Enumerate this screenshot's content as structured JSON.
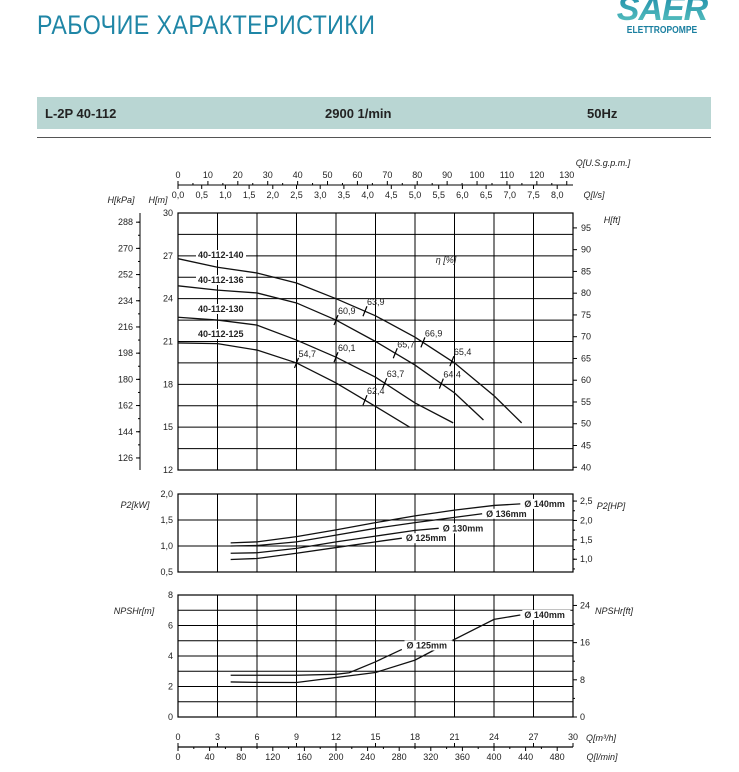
{
  "header": {
    "title": "РАБОЧИЕ ХАРАКТЕРИСТИКИ",
    "logo_text": "SAER",
    "logo_sub": "ELETTROPOMPE",
    "model": "L-2P 40-112",
    "speed": "2900 1/min",
    "frequency": "50Hz",
    "title_color": "#1f86a6",
    "band_color": "#b9d6d3"
  },
  "chart_data": [
    {
      "type": "line",
      "id": "head",
      "xlabel": "Q[m³/h]",
      "xlim": [
        0,
        30
      ],
      "ylabel": "H[m]",
      "ylim": [
        12,
        30
      ],
      "yticks": [
        12,
        15,
        18,
        21,
        24,
        27,
        30
      ],
      "ylabel_left2": "H[kPa]",
      "yticks_left2": [
        126,
        144,
        162,
        180,
        198,
        216,
        234,
        252,
        270,
        288
      ],
      "ylabel_right": "H[ft]",
      "yticks_right": [
        40,
        45,
        50,
        55,
        60,
        65,
        70,
        75,
        80,
        85,
        90,
        95
      ],
      "top_axes": [
        {
          "label": "Q[U.S.g.p.m.]",
          "ticks": [
            "0",
            "10",
            "20",
            "30",
            "40",
            "50",
            "60",
            "70",
            "80",
            "90",
            "100",
            "110",
            "120",
            "130"
          ]
        },
        {
          "label": "Q[l/s]",
          "ticks": [
            "0,0",
            "0,5",
            "1,0",
            "1,5",
            "2,0",
            "2,5",
            "3,0",
            "3,5",
            "4,0",
            "4,5",
            "5,0",
            "5,5",
            "6,0",
            "6,5",
            "7,0",
            "7,5",
            "8,0"
          ]
        }
      ],
      "efficiency_label": "η [%]",
      "grid": true,
      "series": [
        {
          "name": "40-112-140",
          "x": [
            0,
            3,
            6,
            9,
            12,
            15,
            18,
            21,
            24,
            26.1
          ],
          "y": [
            26.8,
            26.2,
            25.8,
            25.1,
            24.0,
            22.8,
            21.3,
            19.5,
            17.2,
            15.3
          ]
        },
        {
          "name": "40-112-136",
          "x": [
            0,
            3,
            6,
            9,
            12,
            15,
            18,
            21,
            23.2
          ],
          "y": [
            24.9,
            24.6,
            24.4,
            23.7,
            22.5,
            21.0,
            19.35,
            17.4,
            15.5
          ]
        },
        {
          "name": "40-112-130",
          "x": [
            0,
            3,
            6,
            9,
            12,
            15,
            18,
            20.9
          ],
          "y": [
            22.7,
            22.5,
            22.15,
            21.1,
            19.9,
            18.5,
            16.7,
            15.3
          ]
        },
        {
          "name": "40-112-125",
          "x": [
            0,
            3,
            6,
            9,
            12,
            15,
            17.6
          ],
          "y": [
            20.9,
            20.85,
            20.4,
            19.5,
            18.1,
            16.45,
            15.0
          ]
        }
      ],
      "efficiency_points": [
        {
          "series": 3,
          "x": 9,
          "label": "54,7"
        },
        {
          "series": 3,
          "x": 14.2,
          "label": "62,4"
        },
        {
          "series": 2,
          "x": 12,
          "label": "60,1"
        },
        {
          "series": 2,
          "x": 15.7,
          "label": "63,7"
        },
        {
          "series": 1,
          "x": 12,
          "label": "60,9"
        },
        {
          "series": 1,
          "x": 16.5,
          "label": "65,7"
        },
        {
          "series": 1,
          "x": 20,
          "label": "64,4"
        },
        {
          "series": 0,
          "x": 14.2,
          "label": "63,9"
        },
        {
          "series": 0,
          "x": 18.6,
          "label": "66,9"
        },
        {
          "series": 0,
          "x": 20.8,
          "label": "65,4"
        }
      ]
    },
    {
      "type": "line",
      "id": "power",
      "ylabel": "P2[kW]",
      "ylim": [
        0.5,
        2.0
      ],
      "yticks": [
        "0,5",
        "1,0",
        "1,5",
        "2,0"
      ],
      "ylabel_right": "P2[HP]",
      "yticks_right": [
        "1,0",
        "1,5",
        "2,0",
        "2,5"
      ],
      "grid": true,
      "series": [
        {
          "name": "Ø 140mm",
          "x": [
            4,
            6,
            9,
            12,
            15,
            18,
            21,
            24,
            26
          ],
          "y": [
            1.06,
            1.08,
            1.18,
            1.31,
            1.45,
            1.58,
            1.69,
            1.78,
            1.81
          ]
        },
        {
          "name": "Ø 136mm",
          "x": [
            4,
            6,
            9,
            12,
            15,
            18,
            21,
            23.1
          ],
          "y": [
            1.0,
            1.01,
            1.08,
            1.21,
            1.34,
            1.45,
            1.55,
            1.62
          ]
        },
        {
          "name": "Ø 130mm",
          "x": [
            4,
            6,
            9,
            12,
            15,
            18,
            19.8
          ],
          "y": [
            0.86,
            0.87,
            0.955,
            1.08,
            1.19,
            1.3,
            1.34
          ]
        },
        {
          "name": "Ø 125mm",
          "x": [
            4,
            6,
            9,
            12,
            15,
            17
          ],
          "y": [
            0.74,
            0.76,
            0.86,
            0.97,
            1.08,
            1.15
          ]
        }
      ]
    },
    {
      "type": "line",
      "id": "npsh",
      "ylabel": "NPSHr[m]",
      "ylim": [
        0,
        8
      ],
      "yticks": [
        "0",
        "2",
        "4",
        "6",
        "8"
      ],
      "ylabel_right": "NPSHr[ft]",
      "yticks_right": [
        "0",
        "8",
        "16",
        "24"
      ],
      "grid": true,
      "series": [
        {
          "name": "Ø 140mm",
          "x": [
            4,
            6,
            9,
            12,
            15,
            18,
            21,
            24,
            26
          ],
          "y": [
            2.3,
            2.27,
            2.26,
            2.59,
            2.92,
            3.73,
            5.09,
            6.4,
            6.69
          ]
        },
        {
          "name": "Ø 125mm",
          "x": [
            4,
            9,
            12,
            13,
            15,
            17
          ],
          "y": [
            2.74,
            2.74,
            2.8,
            2.9,
            3.62,
            4.43
          ]
        }
      ],
      "bottom_axes": [
        {
          "label": "Q[m³/h]",
          "ticks": [
            "0",
            "3",
            "6",
            "9",
            "12",
            "15",
            "18",
            "21",
            "24",
            "27",
            "30"
          ]
        },
        {
          "label": "Q[l/min]",
          "ticks": [
            "0",
            "40",
            "80",
            "120",
            "160",
            "200",
            "240",
            "280",
            "320",
            "360",
            "400",
            "440",
            "480"
          ]
        }
      ]
    }
  ]
}
